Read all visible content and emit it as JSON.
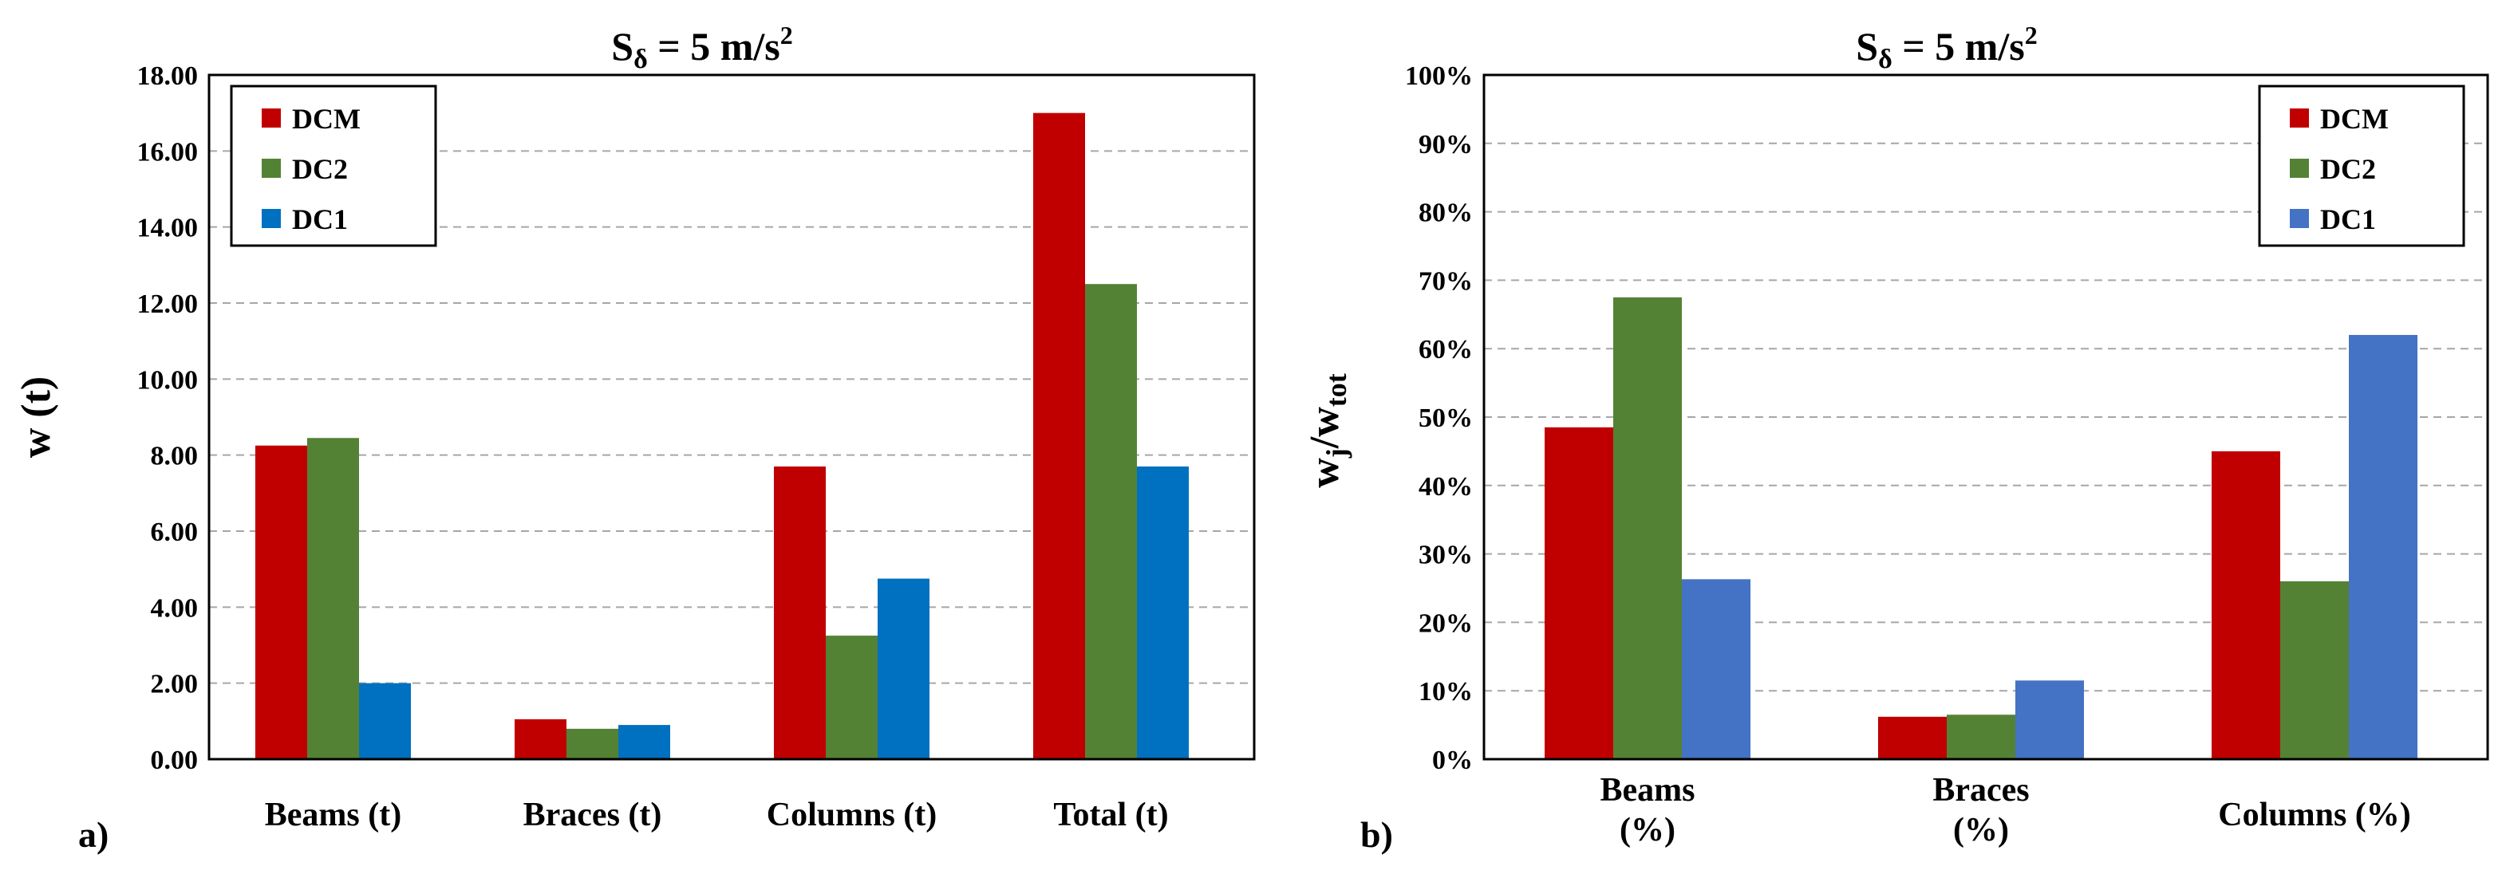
{
  "chart_data": [
    {
      "type": "bar",
      "panel_label": "a)",
      "title": "S",
      "title_sub": "δ",
      "title_rest": " = 5 m/s",
      "title_sup": "2",
      "xlabel": "",
      "ylabel": "w (t)",
      "ylim": [
        0,
        18
      ],
      "ytick_values": [
        0,
        2,
        4,
        6,
        8,
        10,
        12,
        14,
        16,
        18
      ],
      "ytick_labels": [
        "0.00",
        "2.00",
        "4.00",
        "6.00",
        "8.00",
        "10.00",
        "12.00",
        "14.00",
        "16.00",
        "18.00"
      ],
      "categories": [
        "Beams (t)",
        "Braces (t)",
        "Columns (t)",
        "Total (t)"
      ],
      "series": [
        {
          "name": "DCM",
          "color": "#c00000",
          "values": [
            8.25,
            1.05,
            7.7,
            17.0
          ]
        },
        {
          "name": "DC2",
          "color": "#548235",
          "values": [
            8.45,
            0.8,
            3.25,
            12.5
          ]
        },
        {
          "name": "DC1",
          "color": "#0070c0",
          "values": [
            2.0,
            0.9,
            4.75,
            7.7
          ]
        }
      ],
      "grid": true,
      "legend_position": "top-left"
    },
    {
      "type": "bar",
      "panel_label": "b)",
      "title": "S",
      "title_sub": "δ",
      "title_rest": " = 5 m/s",
      "title_sup": "2",
      "xlabel": "",
      "ylabel": "wj/wtot",
      "ylabel_main": "w",
      "ylabel_sub1": "j",
      "ylabel_mid": "/w",
      "ylabel_sub2": "tot",
      "ylim": [
        0,
        100
      ],
      "ytick_values": [
        0,
        10,
        20,
        30,
        40,
        50,
        60,
        70,
        80,
        90,
        100
      ],
      "ytick_labels": [
        "0%",
        "10%",
        "20%",
        "30%",
        "40%",
        "50%",
        "60%",
        "70%",
        "80%",
        "90%",
        "100%"
      ],
      "categories": [
        "Beams (%)",
        "Braces (%)",
        "Columns (%)"
      ],
      "category_lines": [
        [
          "Beams",
          "(%)"
        ],
        [
          "Braces",
          "(%)"
        ],
        [
          "Columns (%)"
        ]
      ],
      "series": [
        {
          "name": "DCM",
          "color": "#c00000",
          "values": [
            48.5,
            6.2,
            45.0
          ]
        },
        {
          "name": "DC2",
          "color": "#548235",
          "values": [
            67.5,
            6.5,
            26.0
          ]
        },
        {
          "name": "DC1",
          "color": "#4472c4",
          "values": [
            26.3,
            11.5,
            62.0
          ]
        }
      ],
      "grid": true,
      "legend_position": "top-right"
    }
  ]
}
